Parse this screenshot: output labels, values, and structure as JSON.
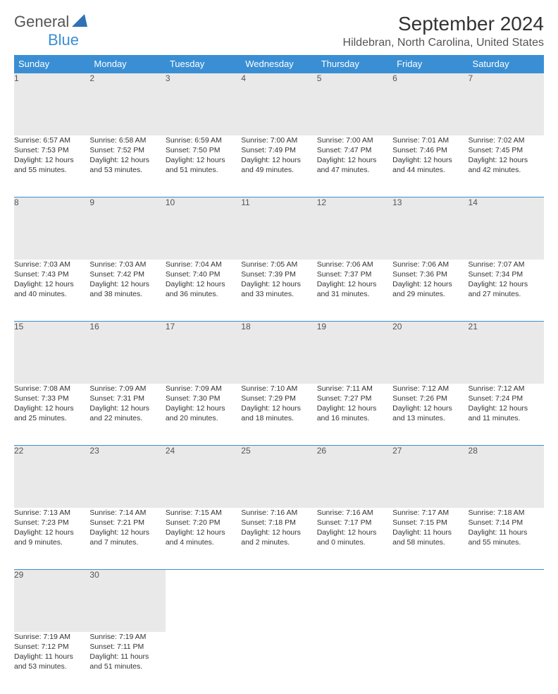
{
  "logo": {
    "general": "General",
    "blue": "Blue"
  },
  "title": "September 2024",
  "location": "Hildebran, North Carolina, United States",
  "colors": {
    "header_bg": "#3a8fd4",
    "daynum_bg": "#e9e9e9",
    "row_border": "#3a8fd4",
    "text": "#333333",
    "subtext": "#555555"
  },
  "weekday_labels": [
    "Sunday",
    "Monday",
    "Tuesday",
    "Wednesday",
    "Thursday",
    "Friday",
    "Saturday"
  ],
  "weeks": [
    [
      {
        "day": "1",
        "sunrise": "Sunrise: 6:57 AM",
        "sunset": "Sunset: 7:53 PM",
        "day1": "Daylight: 12 hours",
        "day2": "and 55 minutes."
      },
      {
        "day": "2",
        "sunrise": "Sunrise: 6:58 AM",
        "sunset": "Sunset: 7:52 PM",
        "day1": "Daylight: 12 hours",
        "day2": "and 53 minutes."
      },
      {
        "day": "3",
        "sunrise": "Sunrise: 6:59 AM",
        "sunset": "Sunset: 7:50 PM",
        "day1": "Daylight: 12 hours",
        "day2": "and 51 minutes."
      },
      {
        "day": "4",
        "sunrise": "Sunrise: 7:00 AM",
        "sunset": "Sunset: 7:49 PM",
        "day1": "Daylight: 12 hours",
        "day2": "and 49 minutes."
      },
      {
        "day": "5",
        "sunrise": "Sunrise: 7:00 AM",
        "sunset": "Sunset: 7:47 PM",
        "day1": "Daylight: 12 hours",
        "day2": "and 47 minutes."
      },
      {
        "day": "6",
        "sunrise": "Sunrise: 7:01 AM",
        "sunset": "Sunset: 7:46 PM",
        "day1": "Daylight: 12 hours",
        "day2": "and 44 minutes."
      },
      {
        "day": "7",
        "sunrise": "Sunrise: 7:02 AM",
        "sunset": "Sunset: 7:45 PM",
        "day1": "Daylight: 12 hours",
        "day2": "and 42 minutes."
      }
    ],
    [
      {
        "day": "8",
        "sunrise": "Sunrise: 7:03 AM",
        "sunset": "Sunset: 7:43 PM",
        "day1": "Daylight: 12 hours",
        "day2": "and 40 minutes."
      },
      {
        "day": "9",
        "sunrise": "Sunrise: 7:03 AM",
        "sunset": "Sunset: 7:42 PM",
        "day1": "Daylight: 12 hours",
        "day2": "and 38 minutes."
      },
      {
        "day": "10",
        "sunrise": "Sunrise: 7:04 AM",
        "sunset": "Sunset: 7:40 PM",
        "day1": "Daylight: 12 hours",
        "day2": "and 36 minutes."
      },
      {
        "day": "11",
        "sunrise": "Sunrise: 7:05 AM",
        "sunset": "Sunset: 7:39 PM",
        "day1": "Daylight: 12 hours",
        "day2": "and 33 minutes."
      },
      {
        "day": "12",
        "sunrise": "Sunrise: 7:06 AM",
        "sunset": "Sunset: 7:37 PM",
        "day1": "Daylight: 12 hours",
        "day2": "and 31 minutes."
      },
      {
        "day": "13",
        "sunrise": "Sunrise: 7:06 AM",
        "sunset": "Sunset: 7:36 PM",
        "day1": "Daylight: 12 hours",
        "day2": "and 29 minutes."
      },
      {
        "day": "14",
        "sunrise": "Sunrise: 7:07 AM",
        "sunset": "Sunset: 7:34 PM",
        "day1": "Daylight: 12 hours",
        "day2": "and 27 minutes."
      }
    ],
    [
      {
        "day": "15",
        "sunrise": "Sunrise: 7:08 AM",
        "sunset": "Sunset: 7:33 PM",
        "day1": "Daylight: 12 hours",
        "day2": "and 25 minutes."
      },
      {
        "day": "16",
        "sunrise": "Sunrise: 7:09 AM",
        "sunset": "Sunset: 7:31 PM",
        "day1": "Daylight: 12 hours",
        "day2": "and 22 minutes."
      },
      {
        "day": "17",
        "sunrise": "Sunrise: 7:09 AM",
        "sunset": "Sunset: 7:30 PM",
        "day1": "Daylight: 12 hours",
        "day2": "and 20 minutes."
      },
      {
        "day": "18",
        "sunrise": "Sunrise: 7:10 AM",
        "sunset": "Sunset: 7:29 PM",
        "day1": "Daylight: 12 hours",
        "day2": "and 18 minutes."
      },
      {
        "day": "19",
        "sunrise": "Sunrise: 7:11 AM",
        "sunset": "Sunset: 7:27 PM",
        "day1": "Daylight: 12 hours",
        "day2": "and 16 minutes."
      },
      {
        "day": "20",
        "sunrise": "Sunrise: 7:12 AM",
        "sunset": "Sunset: 7:26 PM",
        "day1": "Daylight: 12 hours",
        "day2": "and 13 minutes."
      },
      {
        "day": "21",
        "sunrise": "Sunrise: 7:12 AM",
        "sunset": "Sunset: 7:24 PM",
        "day1": "Daylight: 12 hours",
        "day2": "and 11 minutes."
      }
    ],
    [
      {
        "day": "22",
        "sunrise": "Sunrise: 7:13 AM",
        "sunset": "Sunset: 7:23 PM",
        "day1": "Daylight: 12 hours",
        "day2": "and 9 minutes."
      },
      {
        "day": "23",
        "sunrise": "Sunrise: 7:14 AM",
        "sunset": "Sunset: 7:21 PM",
        "day1": "Daylight: 12 hours",
        "day2": "and 7 minutes."
      },
      {
        "day": "24",
        "sunrise": "Sunrise: 7:15 AM",
        "sunset": "Sunset: 7:20 PM",
        "day1": "Daylight: 12 hours",
        "day2": "and 4 minutes."
      },
      {
        "day": "25",
        "sunrise": "Sunrise: 7:16 AM",
        "sunset": "Sunset: 7:18 PM",
        "day1": "Daylight: 12 hours",
        "day2": "and 2 minutes."
      },
      {
        "day": "26",
        "sunrise": "Sunrise: 7:16 AM",
        "sunset": "Sunset: 7:17 PM",
        "day1": "Daylight: 12 hours",
        "day2": "and 0 minutes."
      },
      {
        "day": "27",
        "sunrise": "Sunrise: 7:17 AM",
        "sunset": "Sunset: 7:15 PM",
        "day1": "Daylight: 11 hours",
        "day2": "and 58 minutes."
      },
      {
        "day": "28",
        "sunrise": "Sunrise: 7:18 AM",
        "sunset": "Sunset: 7:14 PM",
        "day1": "Daylight: 11 hours",
        "day2": "and 55 minutes."
      }
    ],
    [
      {
        "day": "29",
        "sunrise": "Sunrise: 7:19 AM",
        "sunset": "Sunset: 7:12 PM",
        "day1": "Daylight: 11 hours",
        "day2": "and 53 minutes."
      },
      {
        "day": "30",
        "sunrise": "Sunrise: 7:19 AM",
        "sunset": "Sunset: 7:11 PM",
        "day1": "Daylight: 11 hours",
        "day2": "and 51 minutes."
      },
      null,
      null,
      null,
      null,
      null
    ]
  ]
}
